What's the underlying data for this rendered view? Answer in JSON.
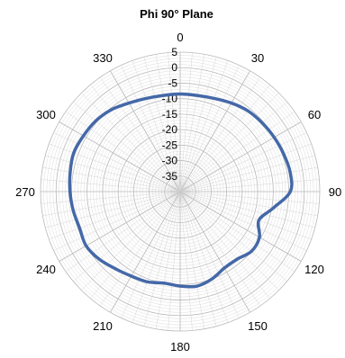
{
  "chart_data": {
    "type": "polar-line",
    "title": "Phi 90° Plane",
    "angle_labels": [
      "0",
      "30",
      "60",
      "90",
      "120",
      "150",
      "180",
      "210",
      "240",
      "270",
      "300",
      "330"
    ],
    "radial_tick_labels": [
      "5",
      "0",
      "-5",
      "-10",
      "-15",
      "-20",
      "-25",
      "-30",
      "-35"
    ],
    "rlim": [
      -40,
      5
    ],
    "grid": true,
    "series": [
      {
        "color": "#4468a8",
        "theta": [
          0,
          10,
          20,
          30,
          40,
          50,
          60,
          70,
          80,
          90,
          100,
          110,
          120,
          130,
          140,
          150,
          160,
          170,
          180,
          190,
          200,
          210,
          220,
          230,
          240,
          250,
          260,
          270,
          280,
          290,
          300,
          310,
          320,
          330,
          340,
          350,
          360
        ],
        "r": [
          -8.5,
          -8.5,
          -8.0,
          -7.0,
          -6.0,
          -5.5,
          -5.0,
          -4.5,
          -4.0,
          -4.5,
          -9.5,
          -13.0,
          -10.5,
          -10.0,
          -11.5,
          -11.5,
          -10.0,
          -9.0,
          -9.5,
          -10.0,
          -9.0,
          -8.5,
          -7.5,
          -6.0,
          -5.0,
          -5.5,
          -5.0,
          -4.5,
          -4.0,
          -3.5,
          -4.0,
          -4.5,
          -5.5,
          -7.0,
          -8.0,
          -8.5,
          -8.5
        ]
      }
    ]
  }
}
